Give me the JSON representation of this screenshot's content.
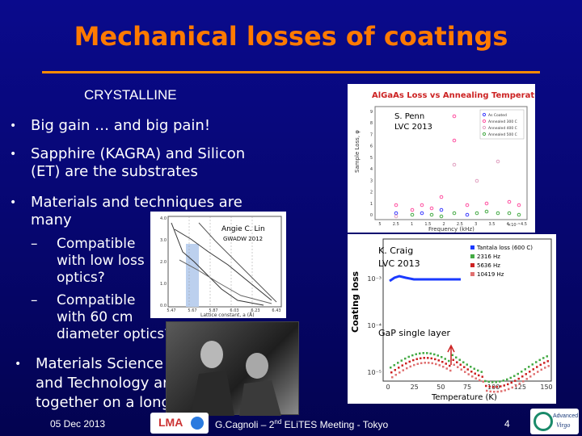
{
  "title": "Mechanical losses of coatings",
  "section": "CRYSTALLINE",
  "bullets": {
    "b1": "Big gain … and big pain!",
    "b2_l1": "Sapphire (KAGRA) and Silicon",
    "b2_l2": "(ET) are the substrates",
    "b3_l1": "Materials and techniques are",
    "b3_l2": "many",
    "s1_l1": "Compatible",
    "s1_l2": "with low loss",
    "s1_l3": "optics?",
    "s2_l1": "Compatible",
    "s2_l2": "with 60 cm",
    "s2_l3": "diameter optics?",
    "b4_l1": "Materials Science",
    "b4_l2": "and Technology are",
    "b4_l3": "together on a long road"
  },
  "bullet_glyph": "•",
  "dash_glyph": "–",
  "figure_top_right": {
    "header": "AlGaAs Loss vs Annealing Temperature",
    "credit_l1": "S. Penn",
    "credit_l2": "LVC 2013",
    "ylabel": "Sample Loss, φ",
    "xlabel": "Frequency (kHz)",
    "scale_note": "×10⁻⁵",
    "legend": [
      "As Coated",
      "Annealed 300 C",
      "Annealed 400 C",
      "Annealed 500 C"
    ],
    "legend_colors": [
      "#3a3aff",
      "#ff4fa0",
      "#e0a0c0",
      "#44aa44"
    ],
    "x_ticks": [
      "5",
      "2.5",
      "1",
      "1.5",
      "2",
      "2.5",
      "3",
      "3.5",
      "4",
      "4.5"
    ],
    "y_ticks": [
      "9",
      "8",
      "7",
      "6",
      "5",
      "4",
      "3",
      "2",
      "1",
      "0"
    ]
  },
  "figure_mid": {
    "credit_l1": "Angie C. Lin",
    "credit_l2": "GWADW 2012",
    "xlabel": "Lattice constant, a (Å)",
    "x_ticks": [
      "5.47",
      "5.67",
      "5.87",
      "6.03",
      "6.23",
      "6.43"
    ],
    "y_ticks": [
      "4.0",
      "3.0",
      "2.0",
      "1.0",
      "0.0"
    ]
  },
  "figure_bottom_right": {
    "credit_l1": "K. Craig",
    "credit_l2": "LVC 2013",
    "note": "GaP single layer",
    "ylabel": "Coating loss",
    "xlabel": "Temperature (K)",
    "legend": [
      "Tantala loss (600 C)",
      "2316 Hz",
      "5636 Hz",
      "10419 Hz"
    ],
    "legend_colors": [
      "#1a3aff",
      "#44aa44",
      "#cc2222",
      "#e07070"
    ],
    "x_ticks": [
      "0",
      "25",
      "50",
      "75",
      "100",
      "125",
      "150"
    ],
    "y_ticks": [
      "10⁻³",
      "10⁻⁴",
      "10⁻⁵"
    ]
  },
  "footer": {
    "date": "05 Dec 2013",
    "center_prefix": "G.Cagnoli – 2",
    "center_sup": "nd",
    "center_suffix": " ELiTES Meeting - Tokyo",
    "page": "4",
    "logo_left_text": "LMA",
    "logo_right_l1": "Advanced",
    "logo_right_l2": "Virgo"
  }
}
